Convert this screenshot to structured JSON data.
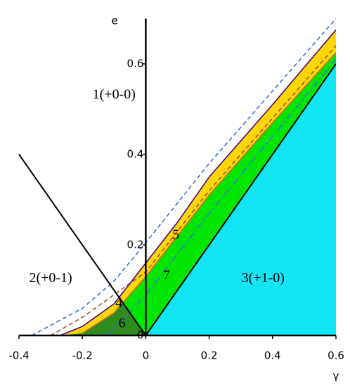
{
  "chart_data": {
    "type": "region",
    "xlabel": "γ",
    "ylabel": "e",
    "xlim": [
      -0.4,
      0.6
    ],
    "ylim": [
      0,
      0.7
    ],
    "xticks": [
      -0.4,
      -0.2,
      0,
      0.2,
      0.4,
      0.6
    ],
    "yticks": [
      0,
      0.2,
      0.4,
      0.6
    ],
    "regions": [
      {
        "color": "#00e600",
        "x": [
          -0.27,
          -0.2,
          -0.1,
          0,
          0.1,
          0.2,
          0.4,
          0.6,
          0.6
        ],
        "y": [
          0,
          0.005,
          0.05,
          0.13,
          0.22,
          0.31,
          0.47,
          0.625,
          0
        ]
      },
      {
        "color": "#ffd700",
        "x": [
          -0.27,
          -0.2,
          -0.1,
          0,
          0.1,
          0.2,
          0.4,
          0.6,
          0.6,
          0.4,
          0.2,
          0.1,
          0,
          -0.1,
          -0.2
        ],
        "y": [
          0,
          0.02,
          0.07,
          0.16,
          0.25,
          0.35,
          0.51,
          0.675,
          0.625,
          0.47,
          0.31,
          0.22,
          0.13,
          0.05,
          0.005
        ]
      },
      {
        "color": "#2e8b1e",
        "x": [
          -0.27,
          -0.2,
          -0.1,
          -0.075,
          0
        ],
        "y": [
          0,
          0.005,
          0.05,
          0.075,
          0
        ]
      },
      {
        "color": "#12e6f5",
        "x": [
          0,
          0.6,
          0.6
        ],
        "y": [
          0,
          0,
          0.6
        ]
      }
    ],
    "curves": [
      {
        "color": "#3a6fe0",
        "style": "dashed",
        "x": [
          -0.36,
          -0.2,
          -0.1,
          0,
          0.2,
          0.4,
          0.6
        ],
        "y": [
          0,
          0.06,
          0.12,
          0.205,
          0.38,
          0.54,
          0.7
        ]
      },
      {
        "color": "#a0522d",
        "style": "dashed",
        "x": [
          -0.3,
          -0.2,
          -0.1,
          0,
          0.2,
          0.4,
          0.6
        ],
        "y": [
          0,
          0.04,
          0.09,
          0.14,
          0.32,
          0.48,
          0.64
        ]
      },
      {
        "color": "#3a6fe0",
        "style": "dashdot",
        "x": [
          -0.12,
          0,
          0.2,
          0.4,
          0.6
        ],
        "y": [
          0,
          0.09,
          0.27,
          0.44,
          0.61
        ]
      },
      {
        "color": "#4b0082",
        "style": "solid",
        "x": [
          -0.27,
          -0.2,
          -0.1,
          0,
          0.1,
          0.2,
          0.4,
          0.6
        ],
        "y": [
          0,
          0.02,
          0.07,
          0.16,
          0.25,
          0.35,
          0.51,
          0.675
        ]
      },
      {
        "color": "#d2691e",
        "style": "solid",
        "x": [
          -0.2,
          -0.1,
          0,
          0.1,
          0.2,
          0.4,
          0.6
        ],
        "y": [
          0.005,
          0.05,
          0.13,
          0.22,
          0.31,
          0.47,
          0.625
        ]
      },
      {
        "color": "#000000",
        "style": "solid",
        "x": [
          -0.4,
          0
        ],
        "y": [
          0.4,
          0
        ]
      },
      {
        "color": "#000000",
        "style": "solid",
        "x": [
          0,
          0.6
        ],
        "y": [
          0,
          0.6
        ]
      }
    ],
    "annotations": [
      {
        "text": "1(+0-0)",
        "x": -0.1,
        "y": 0.53
      },
      {
        "text": "2(+0-1)",
        "x": -0.3,
        "y": 0.125
      },
      {
        "text": "3(+1-0)",
        "x": 0.37,
        "y": 0.125
      },
      {
        "text": "4",
        "x": -0.085,
        "y": 0.07
      },
      {
        "text": "5",
        "x": 0.095,
        "y": 0.22
      },
      {
        "text": "6",
        "x": -0.075,
        "y": 0.025
      },
      {
        "text": "7",
        "x": 0.065,
        "y": 0.13
      }
    ]
  }
}
